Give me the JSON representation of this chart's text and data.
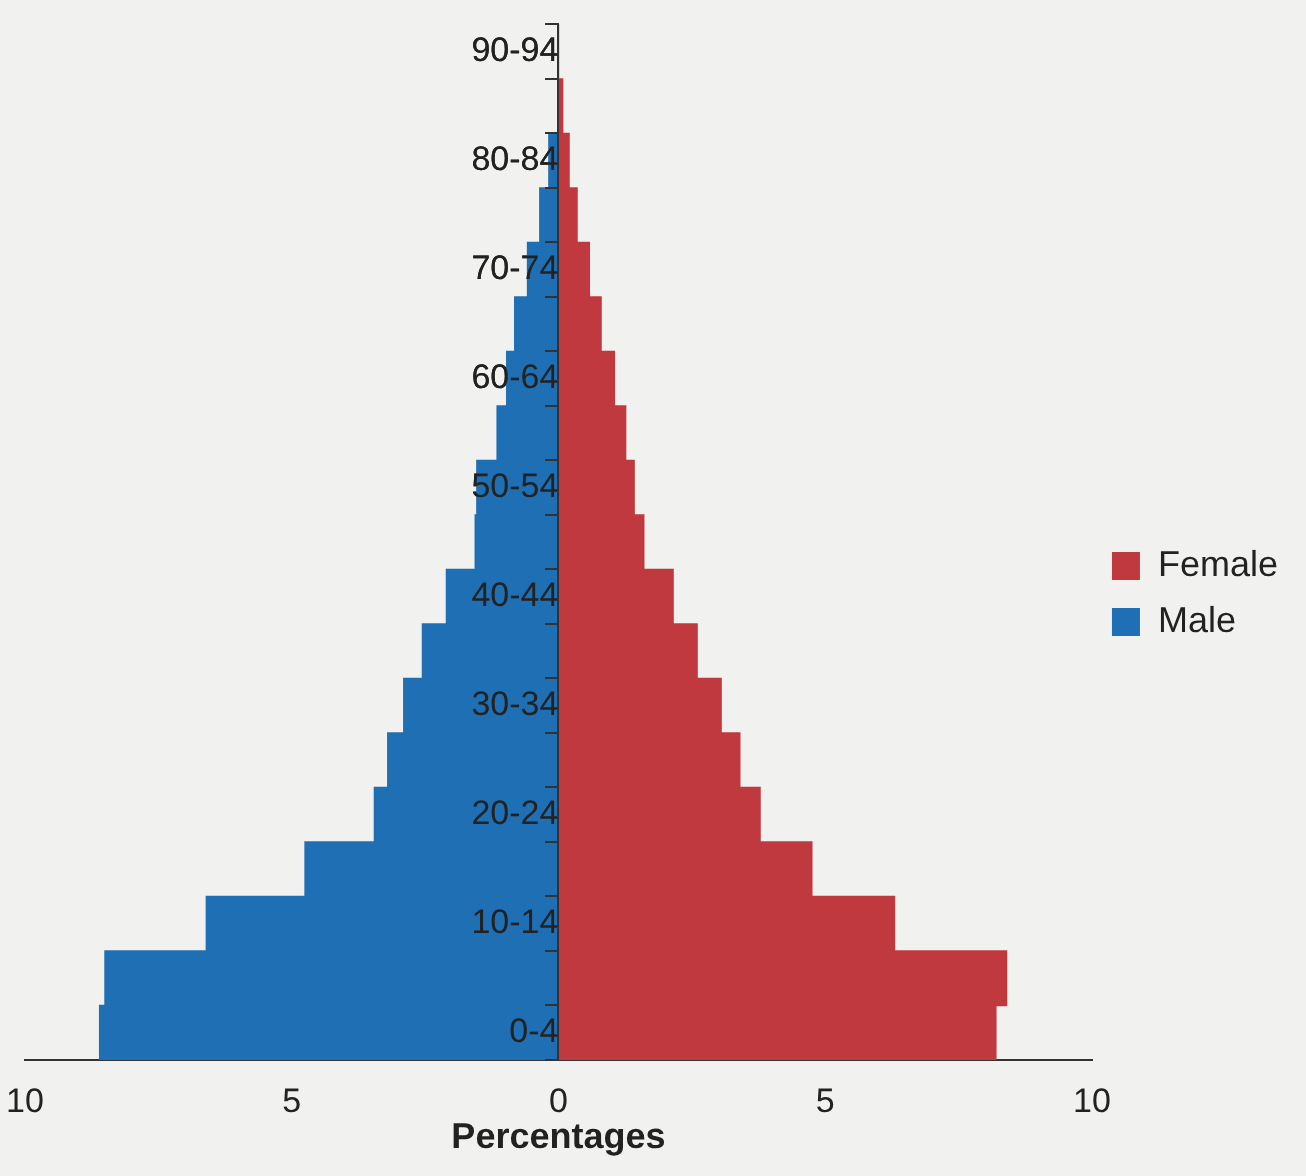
{
  "chart_data": {
    "type": "bar",
    "orientation": "horizontal",
    "stacked": true,
    "xlabel": "Percentages",
    "categories": [
      "90-94",
      null,
      "80-84",
      null,
      "70-74",
      null,
      "60-64",
      null,
      "50-54",
      null,
      "40-44",
      null,
      "30-34",
      null,
      "20-24",
      null,
      "10-14",
      null,
      "0-4"
    ],
    "series": [
      {
        "name": "Female",
        "color": "#c0393f",
        "values": [
          0,
          0.08,
          0.2,
          0.35,
          0.58,
          0.8,
          1.05,
          1.26,
          1.42,
          1.6,
          2.15,
          2.6,
          3.05,
          3.4,
          3.78,
          4.75,
          6.3,
          8.4,
          8.2
        ]
      },
      {
        "name": "Male",
        "color": "#1f6fb5",
        "values": [
          0,
          null,
          -0.18,
          -0.35,
          -0.58,
          -0.82,
          -0.97,
          -1.15,
          -1.53,
          -1.56,
          -2.1,
          -2.55,
          -2.9,
          -3.2,
          -3.45,
          -4.75,
          -6.6,
          -8.5,
          -8.6
        ]
      }
    ],
    "xlim": [
      -10,
      10
    ],
    "xticks": [
      {
        "value": -10,
        "label": "10"
      },
      {
        "value": -5,
        "label": "5"
      },
      0,
      5,
      10
    ],
    "grid": false,
    "legend": "right"
  }
}
